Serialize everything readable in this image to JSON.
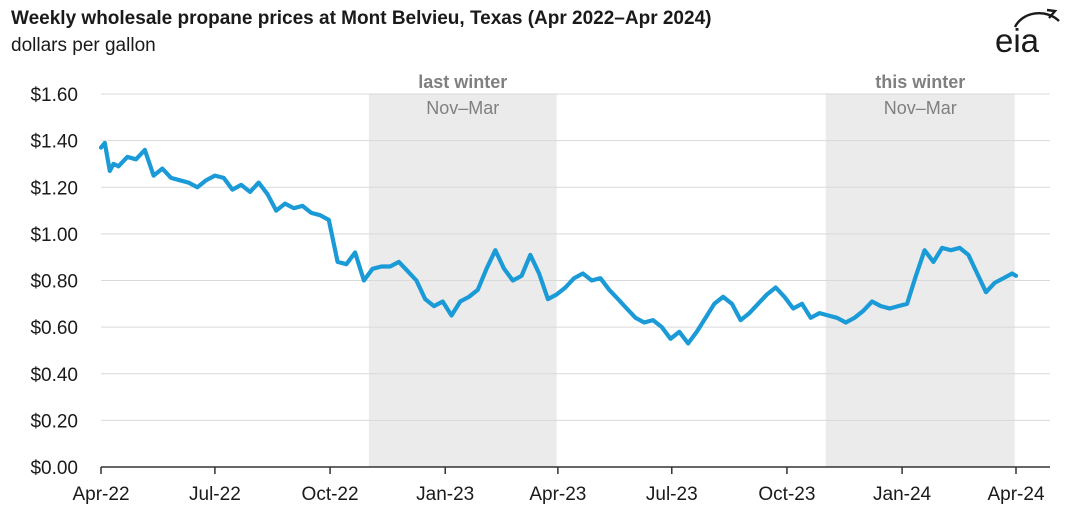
{
  "header": {
    "title": "Weekly wholesale propane prices at Mont Belvieu, Texas (Apr 2022–Apr 2024)",
    "subtitle": "dollars per gallon",
    "logo_text": "eia"
  },
  "colors": {
    "line": "#1a9ad6",
    "shade": "#ebebeb",
    "grid": "#d9d9d9",
    "text": "#1a1a1a",
    "shade_label": "#808080"
  },
  "chart_data": {
    "type": "line",
    "title": "Weekly wholesale propane prices at Mont Belvieu, Texas (Apr 2022–Apr 2024)",
    "ylabel": "dollars per gallon",
    "ylim": [
      0,
      1.6
    ],
    "yticks": [
      0,
      0.2,
      0.4,
      0.6,
      0.8,
      1.0,
      1.2,
      1.4,
      1.6
    ],
    "ytick_labels": [
      "$0.00",
      "$0.20",
      "$0.40",
      "$0.60",
      "$0.80",
      "$1.00",
      "$1.20",
      "$1.40",
      "$1.60"
    ],
    "xlim": [
      "2022-04-01",
      "2024-04-10"
    ],
    "xticks": [
      "2022-04-01",
      "2022-07-01",
      "2022-10-01",
      "2023-01-01",
      "2023-04-01",
      "2023-07-01",
      "2023-10-01",
      "2024-01-01",
      "2024-04-01"
    ],
    "xtick_labels": [
      "Apr-22",
      "Jul-22",
      "Oct-22",
      "Jan-23",
      "Apr-23",
      "Jul-23",
      "Oct-23",
      "Jan-24",
      "Apr-24"
    ],
    "grid": true,
    "shaded_periods": [
      {
        "start": "2022-11-01",
        "end": "2023-03-31",
        "label": "last winter",
        "sublabel": "Nov–Mar"
      },
      {
        "start": "2023-11-01",
        "end": "2024-03-31",
        "label": "this winter",
        "sublabel": "Nov–Mar"
      }
    ],
    "series": [
      {
        "points": [
          [
            "2022-04-01",
            1.37
          ],
          [
            "2022-04-04",
            1.39
          ],
          [
            "2022-04-08",
            1.27
          ],
          [
            "2022-04-11",
            1.3
          ],
          [
            "2022-04-15",
            1.29
          ],
          [
            "2022-04-22",
            1.33
          ],
          [
            "2022-04-29",
            1.32
          ],
          [
            "2022-05-06",
            1.36
          ],
          [
            "2022-05-13",
            1.25
          ],
          [
            "2022-05-20",
            1.28
          ],
          [
            "2022-05-27",
            1.24
          ],
          [
            "2022-06-03",
            1.23
          ],
          [
            "2022-06-10",
            1.22
          ],
          [
            "2022-06-17",
            1.2
          ],
          [
            "2022-06-24",
            1.23
          ],
          [
            "2022-07-01",
            1.25
          ],
          [
            "2022-07-08",
            1.24
          ],
          [
            "2022-07-15",
            1.19
          ],
          [
            "2022-07-22",
            1.21
          ],
          [
            "2022-07-29",
            1.18
          ],
          [
            "2022-08-05",
            1.22
          ],
          [
            "2022-08-12",
            1.17
          ],
          [
            "2022-08-19",
            1.1
          ],
          [
            "2022-08-26",
            1.13
          ],
          [
            "2022-09-02",
            1.11
          ],
          [
            "2022-09-09",
            1.12
          ],
          [
            "2022-09-16",
            1.09
          ],
          [
            "2022-09-23",
            1.08
          ],
          [
            "2022-09-30",
            1.06
          ],
          [
            "2022-10-07",
            0.88
          ],
          [
            "2022-10-14",
            0.87
          ],
          [
            "2022-10-21",
            0.92
          ],
          [
            "2022-10-28",
            0.8
          ],
          [
            "2022-11-04",
            0.85
          ],
          [
            "2022-11-11",
            0.86
          ],
          [
            "2022-11-18",
            0.86
          ],
          [
            "2022-11-25",
            0.88
          ],
          [
            "2022-12-02",
            0.84
          ],
          [
            "2022-12-09",
            0.8
          ],
          [
            "2022-12-16",
            0.72
          ],
          [
            "2022-12-23",
            0.69
          ],
          [
            "2022-12-30",
            0.71
          ],
          [
            "2023-01-06",
            0.65
          ],
          [
            "2023-01-13",
            0.71
          ],
          [
            "2023-01-20",
            0.73
          ],
          [
            "2023-01-27",
            0.76
          ],
          [
            "2023-02-03",
            0.85
          ],
          [
            "2023-02-10",
            0.93
          ],
          [
            "2023-02-17",
            0.85
          ],
          [
            "2023-02-24",
            0.8
          ],
          [
            "2023-03-03",
            0.82
          ],
          [
            "2023-03-10",
            0.91
          ],
          [
            "2023-03-17",
            0.83
          ],
          [
            "2023-03-24",
            0.72
          ],
          [
            "2023-03-31",
            0.74
          ],
          [
            "2023-04-07",
            0.77
          ],
          [
            "2023-04-14",
            0.81
          ],
          [
            "2023-04-21",
            0.83
          ],
          [
            "2023-04-28",
            0.8
          ],
          [
            "2023-05-05",
            0.81
          ],
          [
            "2023-05-12",
            0.76
          ],
          [
            "2023-05-19",
            0.72
          ],
          [
            "2023-05-26",
            0.68
          ],
          [
            "2023-06-02",
            0.64
          ],
          [
            "2023-06-09",
            0.62
          ],
          [
            "2023-06-16",
            0.63
          ],
          [
            "2023-06-23",
            0.6
          ],
          [
            "2023-06-30",
            0.55
          ],
          [
            "2023-07-07",
            0.58
          ],
          [
            "2023-07-14",
            0.53
          ],
          [
            "2023-07-21",
            0.58
          ],
          [
            "2023-07-28",
            0.64
          ],
          [
            "2023-08-04",
            0.7
          ],
          [
            "2023-08-11",
            0.73
          ],
          [
            "2023-08-18",
            0.7
          ],
          [
            "2023-08-25",
            0.63
          ],
          [
            "2023-09-01",
            0.66
          ],
          [
            "2023-09-08",
            0.7
          ],
          [
            "2023-09-15",
            0.74
          ],
          [
            "2023-09-22",
            0.77
          ],
          [
            "2023-09-29",
            0.73
          ],
          [
            "2023-10-06",
            0.68
          ],
          [
            "2023-10-13",
            0.7
          ],
          [
            "2023-10-20",
            0.64
          ],
          [
            "2023-10-27",
            0.66
          ],
          [
            "2023-11-03",
            0.65
          ],
          [
            "2023-11-10",
            0.64
          ],
          [
            "2023-11-17",
            0.62
          ],
          [
            "2023-11-24",
            0.64
          ],
          [
            "2023-12-01",
            0.67
          ],
          [
            "2023-12-08",
            0.71
          ],
          [
            "2023-12-15",
            0.69
          ],
          [
            "2023-12-22",
            0.68
          ],
          [
            "2023-12-29",
            0.69
          ],
          [
            "2024-01-05",
            0.7
          ],
          [
            "2024-01-12",
            0.82
          ],
          [
            "2024-01-19",
            0.93
          ],
          [
            "2024-01-26",
            0.88
          ],
          [
            "2024-02-02",
            0.94
          ],
          [
            "2024-02-09",
            0.93
          ],
          [
            "2024-02-16",
            0.94
          ],
          [
            "2024-02-23",
            0.91
          ],
          [
            "2024-03-01",
            0.83
          ],
          [
            "2024-03-08",
            0.75
          ],
          [
            "2024-03-15",
            0.79
          ],
          [
            "2024-03-22",
            0.81
          ],
          [
            "2024-03-29",
            0.83
          ],
          [
            "2024-04-01",
            0.82
          ]
        ]
      }
    ]
  }
}
